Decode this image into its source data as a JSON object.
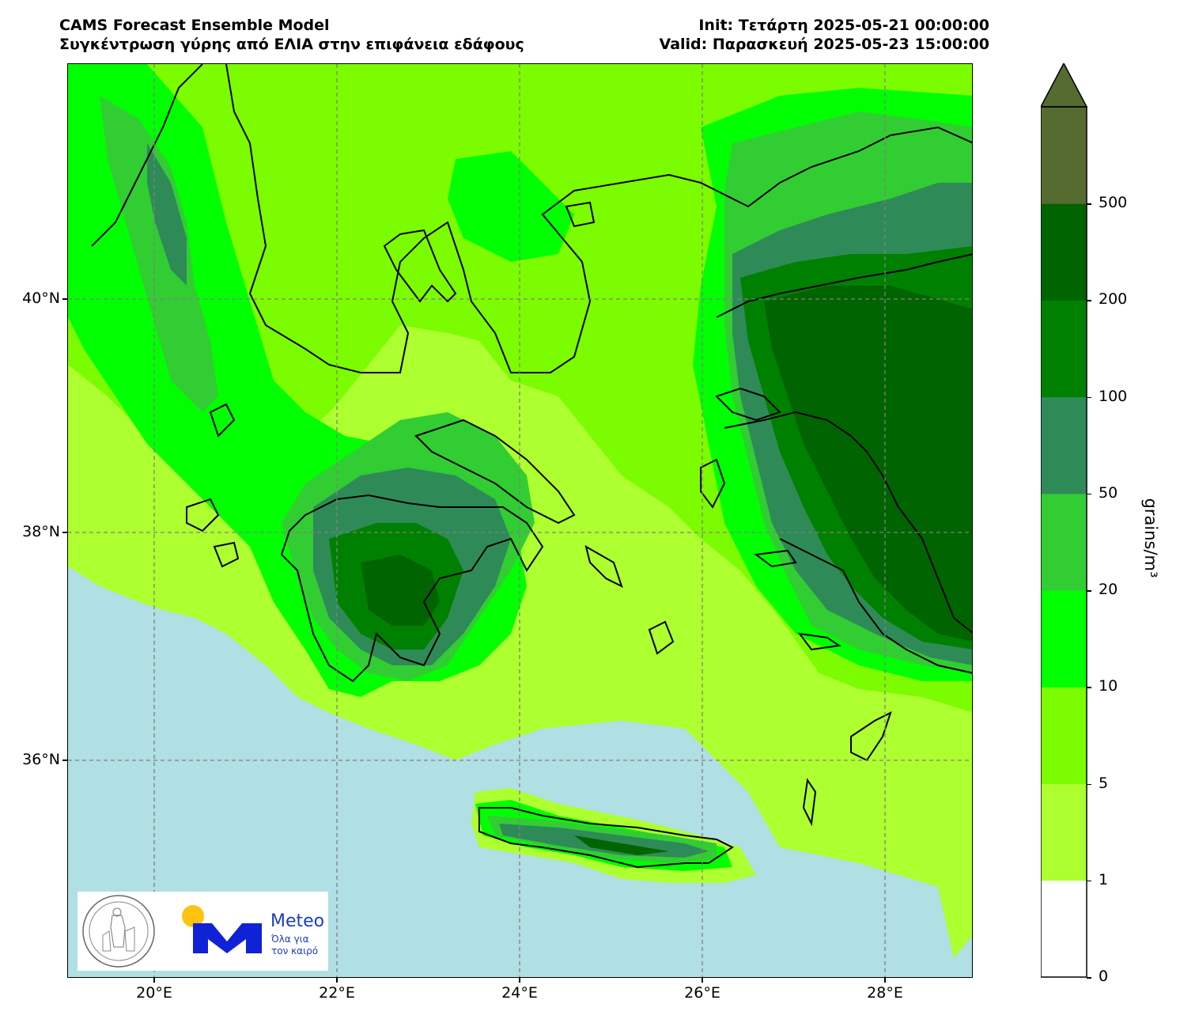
{
  "header": {
    "model": "CAMS Forecast Ensemble Model",
    "subtitle": "Συγκέντρωση γύρης από ΕΛΙΑ στην επιφάνεια εδάφους",
    "init": "Init: Τετάρτη 2025-05-21 00:00:00",
    "valid": "Valid: Παρασκευή 2025-05-23 15:00:00"
  },
  "axes": {
    "x_ticks": [
      "20°E",
      "22°E",
      "24°E",
      "26°E",
      "28°E"
    ],
    "y_ticks": [
      "40°N",
      "38°N",
      "36°N"
    ]
  },
  "colorbar": {
    "unit": "grains/m³",
    "levels": [
      "0",
      "1",
      "5",
      "10",
      "20",
      "50",
      "100",
      "200",
      "500"
    ],
    "colors": [
      "#ffffff",
      "#adff2f",
      "#7cfc00",
      "#00ff00",
      "#32cd32",
      "#2e8b57",
      "#008000",
      "#006400",
      "#556b2f"
    ]
  },
  "legend_colors": {
    "sea": "#b0dfe4",
    "coast": "#000000",
    "grid": "#808080"
  },
  "logos": {
    "observatory": "ΕΘΝΙΚΟΝ ΑΣΤΕΡΟΣΚΟΠΕΙΟΝ ΑΘΗΝΩΝ · NATIONAL OBSERVATORY OF ATHENS",
    "brand": "Meteo",
    "tagline1": "Όλα για",
    "tagline2": "τον καιρό"
  }
}
